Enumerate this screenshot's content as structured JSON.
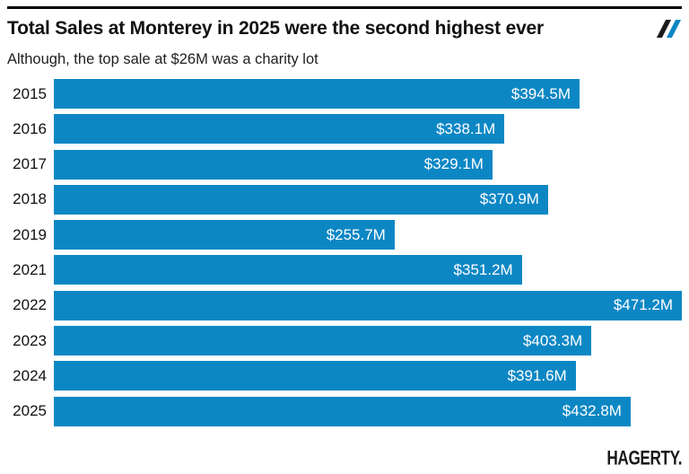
{
  "header": {
    "title": "Total Sales at Monterey in 2025 were the second highest ever",
    "subtitle": "Although, the top sale at $26M was a charity lot"
  },
  "branding": {
    "wordmark": "HAGERTY."
  },
  "colors": {
    "bar_blue": "#0d87c4",
    "slash_dark": "#1c1c1e",
    "slash_blue": "#0d87c4",
    "title_text": "#121212",
    "value_label_text": "#ffffff"
  },
  "chart_data": {
    "type": "bar",
    "orientation": "horizontal",
    "title": "Total Sales at Monterey in 2025 were the second highest ever",
    "subtitle": "Although, the top sale at $26M was a charity lot",
    "categories": [
      "2015",
      "2016",
      "2017",
      "2018",
      "2019",
      "2021",
      "2022",
      "2023",
      "2024",
      "2025"
    ],
    "values": [
      394.5,
      338.1,
      329.1,
      370.9,
      255.7,
      351.2,
      471.2,
      403.3,
      391.6,
      432.8
    ],
    "labels": [
      "$394.5M",
      "$338.1M",
      "$329.1M",
      "$370.9M",
      "$255.7M",
      "$351.2M",
      "$471.2M",
      "$403.3M",
      "$391.6M",
      "$432.8M"
    ],
    "value_unit": "USD millions",
    "xlim": [
      0,
      471.2
    ],
    "grid": false,
    "legend": false,
    "value_labels_position": "inside-end"
  }
}
